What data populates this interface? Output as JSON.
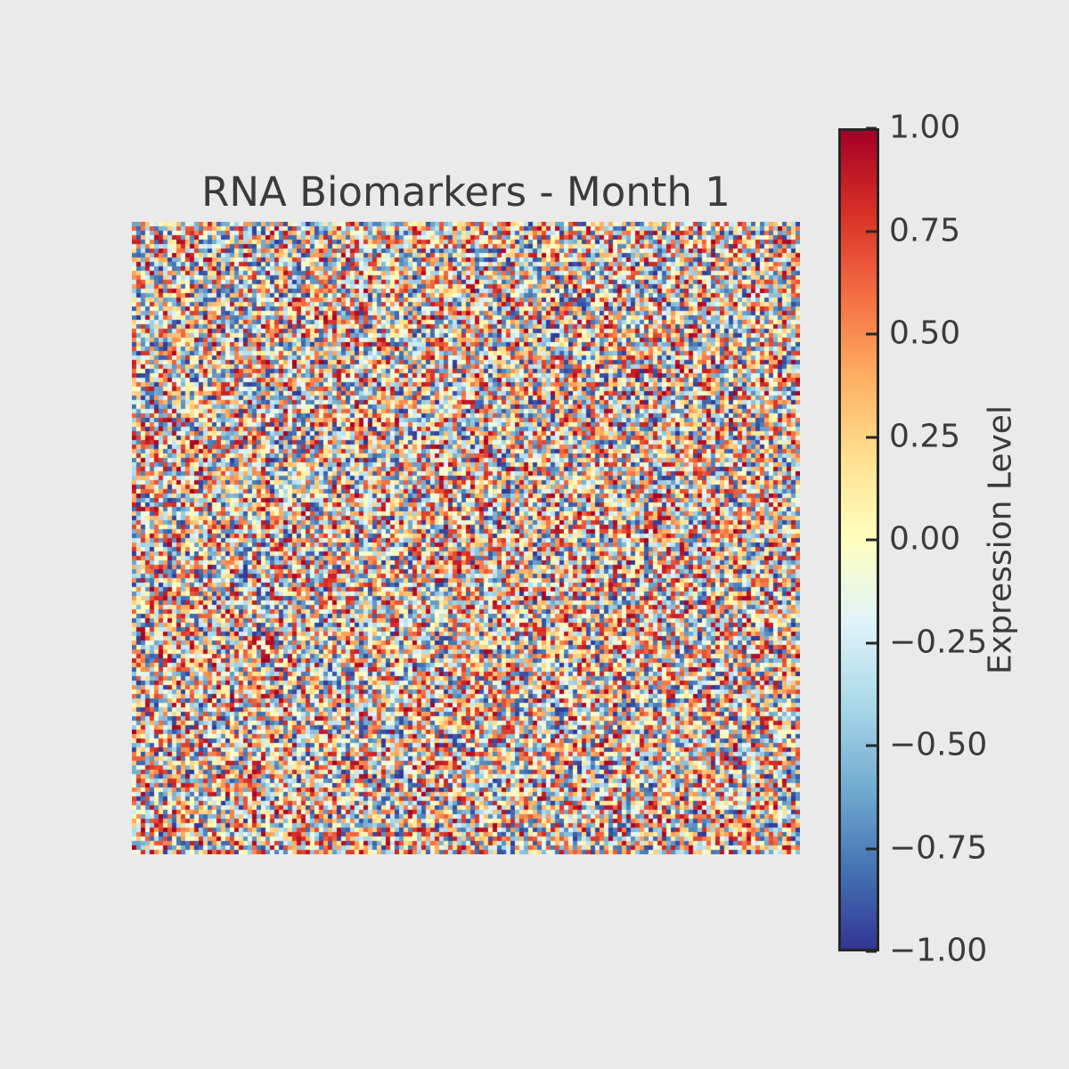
{
  "figure": {
    "background_color": "#eaeaea",
    "text_color": "#3b3b3b"
  },
  "title": {
    "text": "RNA Biomarkers - Month 1"
  },
  "colorbar": {
    "label": "Expression Level",
    "tick_labels": [
      "1.00",
      "0.75",
      "0.50",
      "0.25",
      "0.00",
      "−0.25",
      "−0.50",
      "−0.75",
      "−1.00"
    ],
    "outline_color": "#262626",
    "tick_color": "#262626"
  },
  "chart_data": {
    "type": "heatmap",
    "title": "RNA Biomarkers - Month 1",
    "colorbar_label": "Expression Level",
    "rows": 142,
    "cols": 150,
    "value_range": [
      -1,
      1
    ],
    "distribution": "dense uniform random noise spanning the full -1 to 1 range; no x/y axis ticks or labels on the heatmap",
    "colormap": "RdYlBu_r",
    "colormap_stops_low_to_high": [
      "#313695",
      "#4575b4",
      "#74add1",
      "#abd9e9",
      "#e0f3f8",
      "#ffffbf",
      "#fee090",
      "#fdae61",
      "#f46d43",
      "#d73027",
      "#a50026"
    ],
    "colorbar_ticks": [
      1.0,
      0.75,
      0.5,
      0.25,
      0.0,
      -0.25,
      -0.5,
      -0.75,
      -1.0
    ],
    "legend_position": "colorbar right",
    "grid": false
  }
}
